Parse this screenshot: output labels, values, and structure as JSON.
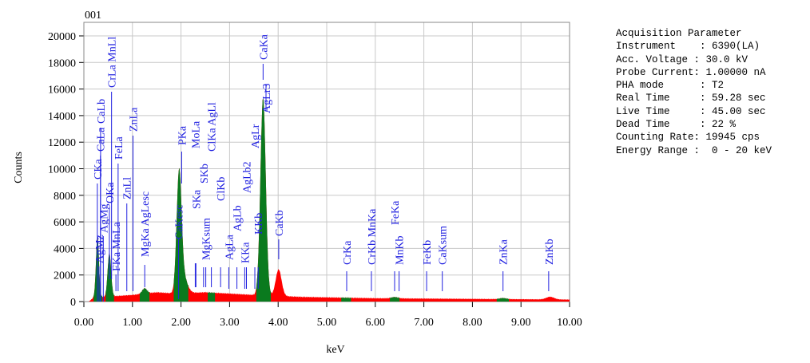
{
  "chart_data": {
    "type": "area",
    "title": "001",
    "xlabel": "keV",
    "ylabel": "Counts",
    "xlim": [
      0,
      10
    ],
    "ylim": [
      0,
      21000
    ],
    "x_ticks": [
      "0.00",
      "1.00",
      "2.00",
      "3.00",
      "4.00",
      "5.00",
      "6.00",
      "7.00",
      "8.00",
      "9.00",
      "10.00"
    ],
    "y_ticks": [
      "0",
      "2000",
      "4000",
      "6000",
      "8000",
      "10000",
      "12000",
      "14000",
      "16000",
      "18000",
      "20000"
    ],
    "grid": true,
    "colors": {
      "spectrum": "#ff0000",
      "roi": "#0a7a1e",
      "markers": "#2020e0",
      "grid": "#c8c8c8"
    },
    "background": [
      [
        0.1,
        0
      ],
      [
        0.2,
        300
      ],
      [
        0.6,
        400
      ],
      [
        1.0,
        500
      ],
      [
        1.5,
        700
      ],
      [
        1.9,
        600
      ],
      [
        2.5,
        700
      ],
      [
        3.0,
        600
      ],
      [
        3.5,
        500
      ],
      [
        4.5,
        350
      ],
      [
        6.0,
        250
      ],
      [
        8.0,
        200
      ],
      [
        10.0,
        150
      ]
    ],
    "peaks": [
      {
        "line": "CKa",
        "energy": 0.28,
        "counts": 4600,
        "sigma": 0.03
      },
      {
        "line": "OKa",
        "energy": 0.525,
        "counts": 3300,
        "sigma": 0.035
      },
      {
        "line": "MgKa",
        "energy": 1.25,
        "counts": 400,
        "sigma": 0.05
      },
      {
        "line": "CaKesc",
        "energy": 1.96,
        "counts": 8800,
        "sigma": 0.05
      },
      {
        "line": "PKa",
        "energy": 2.05,
        "counts": 1200,
        "sigma": 0.08
      },
      {
        "line": "CaKa",
        "energy": 3.69,
        "counts": 14900,
        "sigma": 0.055
      },
      {
        "line": "CaKb",
        "energy": 4.01,
        "counts": 2000,
        "sigma": 0.06
      },
      {
        "line": "FeKa",
        "energy": 6.4,
        "counts": 100,
        "sigma": 0.07
      },
      {
        "line": "ZnKa",
        "energy": 8.63,
        "counts": 80,
        "sigma": 0.07
      },
      {
        "line": "ZnKb",
        "energy": 9.6,
        "counts": 200,
        "sigma": 0.08
      }
    ],
    "roi": [
      [
        0.2,
        0.38
      ],
      [
        0.45,
        0.62
      ],
      [
        1.15,
        1.35
      ],
      [
        1.85,
        2.15
      ],
      [
        2.55,
        2.7
      ],
      [
        3.55,
        3.85
      ],
      [
        5.3,
        5.5
      ],
      [
        6.3,
        6.5
      ],
      [
        8.5,
        8.75
      ]
    ],
    "markers": [
      {
        "label": "CKa",
        "energy": 0.277
      },
      {
        "label": "CaLa",
        "energy": 0.341
      },
      {
        "label": "CaLb",
        "energy": 0.344
      },
      {
        "label": "AgMz",
        "energy": 0.311
      },
      {
        "label": "AgMg",
        "energy": 0.4
      },
      {
        "label": "OKa",
        "energy": 0.525
      },
      {
        "label": "CrLa MnLl",
        "energy": 0.57
      },
      {
        "label": "FKa MnLa",
        "energy": 0.66
      },
      {
        "label": "FeLa",
        "energy": 0.705
      },
      {
        "label": "ZnLl",
        "energy": 0.884
      },
      {
        "label": "ZnLa",
        "energy": 1.012
      },
      {
        "label": "MgKa AgLesc",
        "energy": 1.253
      },
      {
        "label": "CaKesc",
        "energy": 1.95
      },
      {
        "label": "PKa",
        "energy": 2.013
      },
      {
        "label": "MoLa",
        "energy": 2.293
      },
      {
        "label": "SKa",
        "energy": 2.307
      },
      {
        "label": "SKb",
        "energy": 2.464
      },
      {
        "label": "MgKsum",
        "energy": 2.51
      },
      {
        "label": "ClKa AgLl",
        "energy": 2.625
      },
      {
        "label": "ClKb",
        "energy": 2.815
      },
      {
        "label": "AgLa",
        "energy": 2.984
      },
      {
        "label": "AgLb",
        "energy": 3.151
      },
      {
        "label": "KKa",
        "energy": 3.312
      },
      {
        "label": "AgLb2",
        "energy": 3.347
      },
      {
        "label": "AgLr",
        "energy": 3.52
      },
      {
        "label": "KKb",
        "energy": 3.589
      },
      {
        "label": "CaKa",
        "energy": 3.69
      },
      {
        "label": "AgLr3",
        "energy": 3.75
      },
      {
        "label": "CaKb",
        "energy": 4.012
      },
      {
        "label": "CrKa",
        "energy": 5.411
      },
      {
        "label": "CrKb MnKa",
        "energy": 5.92
      },
      {
        "label": "FeKa",
        "energy": 6.398
      },
      {
        "label": "MnKb",
        "energy": 6.49
      },
      {
        "label": "FeKb",
        "energy": 7.057
      },
      {
        "label": "CaKsum",
        "energy": 7.38
      },
      {
        "label": "ZnKa",
        "energy": 8.63
      },
      {
        "label": "ZnKb",
        "energy": 9.57
      }
    ]
  },
  "params": {
    "lines": [
      "Acquisition Parameter",
      "Instrument    : 6390(LA)",
      "Acc. Voltage : 30.0 kV",
      "Probe Current: 1.00000 nA",
      "PHA mode      : T2",
      "Real Time     : 59.28 sec",
      "Live Time     : 45.00 sec",
      "Dead Time     : 22 %",
      "Counting Rate: 19945 cps",
      "Energy Range :  0 - 20 keV"
    ]
  }
}
